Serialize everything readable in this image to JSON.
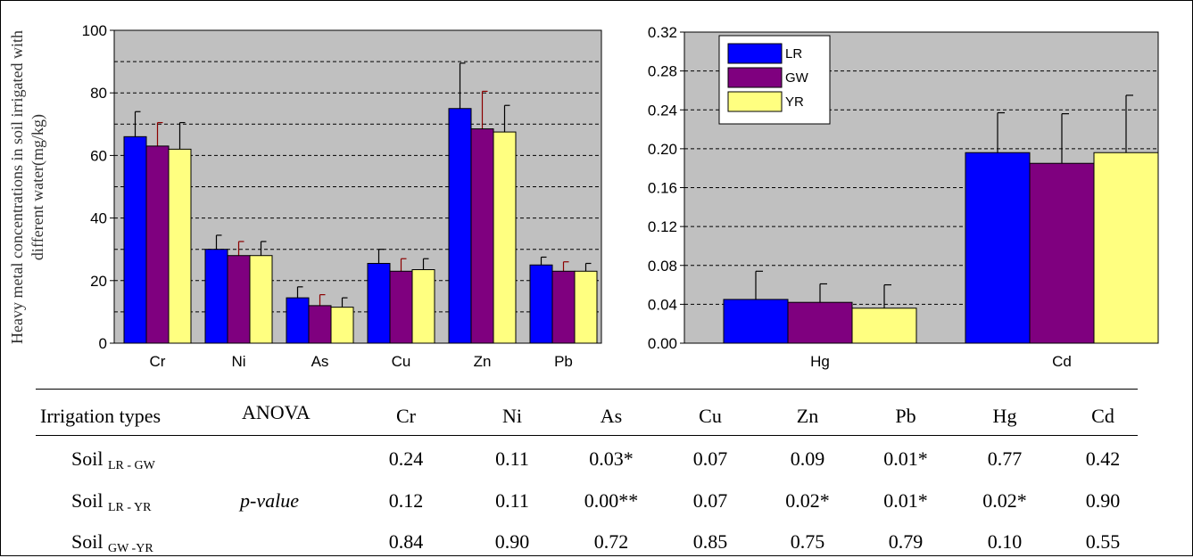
{
  "chart_data": [
    {
      "type": "bar",
      "ylabel": "Heavy metal concentrations in soil irrigated with different water(mg/kg)",
      "ylim": [
        0,
        100
      ],
      "yticks": [
        "0",
        "20",
        "40",
        "60",
        "80",
        "100"
      ],
      "grid": true,
      "categories": [
        "Cr",
        "Ni",
        "As",
        "Cu",
        "Zn",
        "Pb"
      ],
      "series": [
        {
          "name": "LR",
          "values": [
            66,
            30,
            14.5,
            25.5,
            75,
            25
          ],
          "errors": [
            8,
            4.5,
            3.5,
            4.5,
            14.5,
            2.5
          ]
        },
        {
          "name": "GW",
          "values": [
            63,
            28,
            12,
            23,
            68.5,
            23
          ],
          "errors": [
            7.5,
            4.5,
            3.5,
            4,
            12,
            3
          ]
        },
        {
          "name": "YR",
          "values": [
            62,
            28,
            11.5,
            23.5,
            67.5,
            23
          ],
          "errors": [
            8.5,
            4.5,
            3,
            3.5,
            8.5,
            2.5
          ]
        }
      ]
    },
    {
      "type": "bar",
      "ylim": [
        0,
        0.32
      ],
      "yticks": [
        "0.00",
        "0.04",
        "0.08",
        "0.12",
        "0.16",
        "0.20",
        "0.24",
        "0.28",
        "0.32"
      ],
      "grid": true,
      "legend": "top-left",
      "categories": [
        "Hg",
        "Cd"
      ],
      "series": [
        {
          "name": "LR",
          "values": [
            0.045,
            0.196
          ],
          "errors": [
            0.029,
            0.041
          ]
        },
        {
          "name": "GW",
          "values": [
            0.042,
            0.185
          ],
          "errors": [
            0.019,
            0.051
          ]
        },
        {
          "name": "YR",
          "values": [
            0.036,
            0.196
          ],
          "errors": [
            0.024,
            0.059
          ]
        }
      ]
    }
  ],
  "colors": {
    "LR": "#0000ff",
    "GW": "#7f007f",
    "YR": "#ffff80",
    "plot_bg": "#c0c0c0",
    "err_ni_gw": "#8b0000"
  },
  "table": {
    "head": {
      "col1": "Irrigation types",
      "col2": "ANOVA",
      "metals": [
        "Cr",
        "Ni",
        "As",
        "Cu",
        "Zn",
        "Pb",
        "Hg",
        "Cd"
      ]
    },
    "stat": "p-value",
    "rows": [
      {
        "pre": "Soil",
        "sub": "LR - GW",
        "values": [
          "0.24",
          "0.11",
          "0.03*",
          "0.07",
          "0.09",
          "0.01*",
          "0.77",
          "0.42"
        ]
      },
      {
        "pre": "Soil",
        "sub": "LR - YR",
        "values": [
          "0.12",
          "0.11",
          "0.00**",
          "0.07",
          "0.02*",
          "0.01*",
          "0.02*",
          "0.90"
        ]
      },
      {
        "pre": "Soil",
        "sub": "GW -YR",
        "values": [
          "0.84",
          "0.90",
          "0.72",
          "0.85",
          "0.75",
          "0.79",
          "0.10",
          "0.55"
        ]
      }
    ]
  }
}
